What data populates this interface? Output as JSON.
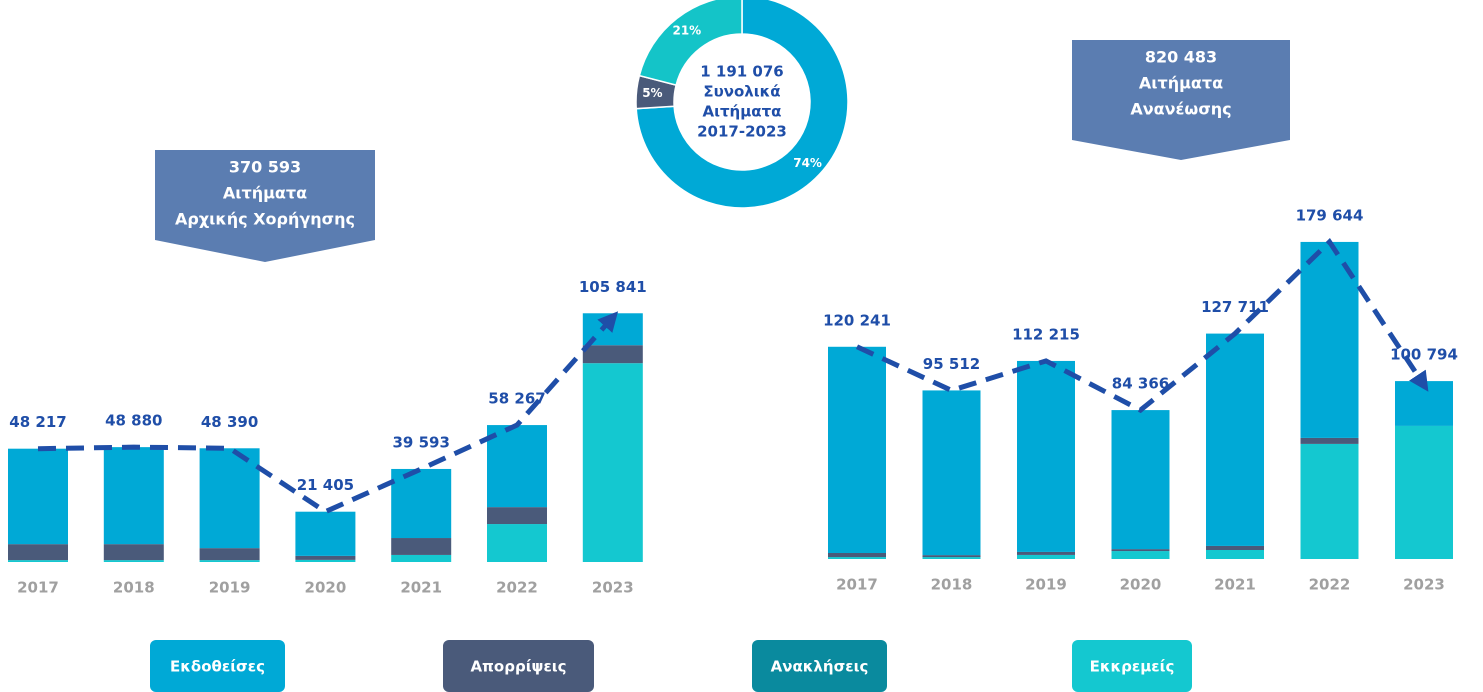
{
  "chart_data": [
    {
      "type": "pie",
      "donut": true,
      "values": [
        74,
        5,
        21
      ],
      "value_labels": [
        "74%",
        "5%",
        "21%"
      ],
      "colors": [
        "#00a9d6",
        "#4a5a7a",
        "#14c4c8"
      ],
      "center_text": [
        "1 191 076",
        "Συνολικά",
        "Αιτήματα",
        "2017-2023"
      ]
    },
    {
      "type": "bar",
      "stacked": true,
      "callout": [
        "370 593",
        "Αιτήματα",
        "Αρχικής Χορήγησης"
      ],
      "categories": [
        "2017",
        "2018",
        "2019",
        "2020",
        "2021",
        "2022",
        "2023"
      ],
      "series": [
        {
          "name": "Εκδοθείσες",
          "color": "#00a9d6",
          "values": [
            40617,
            41280,
            42490,
            18805,
            29393,
            34917,
            13591
          ]
        },
        {
          "name": "Απορρίψεις",
          "color": "#4a5a7a",
          "values": [
            6800,
            6800,
            5100,
            1700,
            7200,
            7200,
            7650
          ]
        },
        {
          "name": "Ανακλήσεις",
          "color": "#0a8a9e",
          "values": [
            0,
            0,
            0,
            0,
            0,
            0,
            0
          ]
        },
        {
          "name": "Εκκρεμείς",
          "color": "#14c8d0",
          "values": [
            800,
            800,
            800,
            900,
            3000,
            16150,
            84600
          ]
        }
      ],
      "totals": [
        48217,
        48880,
        48390,
        21405,
        39593,
        58267,
        105841
      ],
      "value_labels": [
        "48 217",
        "48 880",
        "48 390",
        "21 405",
        "39 593",
        "58 267",
        "105 841"
      ],
      "ylim": [
        0,
        120000
      ],
      "trend_line_color": "#1f4ea8"
    },
    {
      "type": "bar",
      "stacked": true,
      "callout": [
        "820 483",
        "Αιτήματα",
        "Ανανέωσης"
      ],
      "categories": [
        "2017",
        "2018",
        "2019",
        "2020",
        "2021",
        "2022",
        "2023"
      ],
      "series": [
        {
          "values": [
            116841,
            93312,
            108215,
            78766,
            120311,
            111044,
            25394
          ]
        },
        {
          "values": [
            2300,
            1100,
            1700,
            1100,
            2300,
            3400,
            0
          ]
        },
        {
          "values": [
            0,
            0,
            0,
            0,
            0,
            0,
            0
          ]
        },
        {
          "values": [
            1100,
            1100,
            2300,
            4500,
            5100,
            65200,
            75400
          ]
        }
      ],
      "totals": [
        120241,
        95512,
        112215,
        84366,
        127711,
        179644,
        100794
      ],
      "value_labels": [
        "120 241",
        "95 512",
        "112 215",
        "84 366",
        "127 711",
        "179 644",
        "100 794"
      ],
      "ylim": [
        0,
        200000
      ],
      "trend_line_color": "#1f4ea8"
    }
  ]
}
